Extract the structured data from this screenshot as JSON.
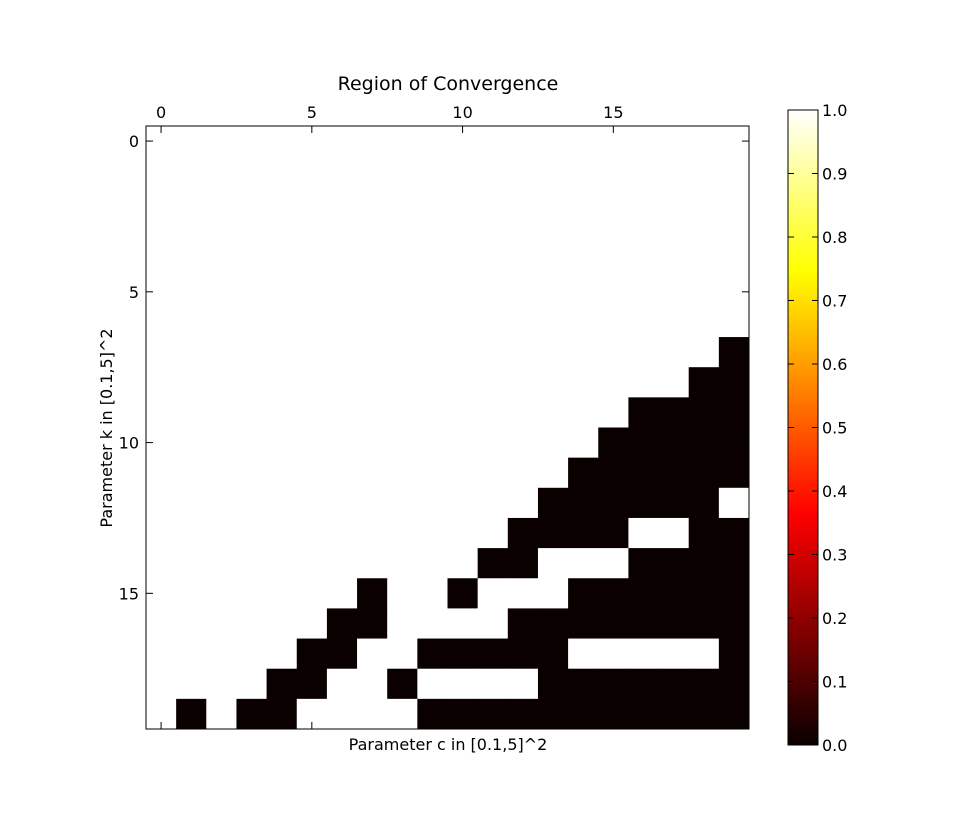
{
  "chart_data": {
    "type": "heatmap",
    "title": "Region of Convergence",
    "xlabel": "Parameter c in [0.1,5]^2",
    "ylabel": "Parameter k in [0.1,5]^2",
    "x_ticks": [
      "0",
      "5",
      "10",
      "15"
    ],
    "y_ticks": [
      "0",
      "5",
      "10",
      "15"
    ],
    "x_range": [
      -0.5,
      19.5
    ],
    "y_range": [
      -0.5,
      19.5
    ],
    "x_tick_position": "top",
    "colormap": "hot",
    "colorbar": {
      "range": [
        0.0,
        1.0
      ],
      "ticks": [
        "0.0",
        "0.1",
        "0.2",
        "0.3",
        "0.4",
        "0.5",
        "0.6",
        "0.7",
        "0.8",
        "0.9",
        "1.0"
      ],
      "stops": [
        "#000000",
        "#ff0000",
        "#ffff00",
        "#ffffff"
      ]
    },
    "low_color": "#0a0000",
    "high_color": "#ffffff",
    "values": [
      [
        1,
        1,
        1,
        1,
        1,
        1,
        1,
        1,
        1,
        1,
        1,
        1,
        1,
        1,
        1,
        1,
        1,
        1,
        1,
        1
      ],
      [
        1,
        1,
        1,
        1,
        1,
        1,
        1,
        1,
        1,
        1,
        1,
        1,
        1,
        1,
        1,
        1,
        1,
        1,
        1,
        1
      ],
      [
        1,
        1,
        1,
        1,
        1,
        1,
        1,
        1,
        1,
        1,
        1,
        1,
        1,
        1,
        1,
        1,
        1,
        1,
        1,
        1
      ],
      [
        1,
        1,
        1,
        1,
        1,
        1,
        1,
        1,
        1,
        1,
        1,
        1,
        1,
        1,
        1,
        1,
        1,
        1,
        1,
        1
      ],
      [
        1,
        1,
        1,
        1,
        1,
        1,
        1,
        1,
        1,
        1,
        1,
        1,
        1,
        1,
        1,
        1,
        1,
        1,
        1,
        1
      ],
      [
        1,
        1,
        1,
        1,
        1,
        1,
        1,
        1,
        1,
        1,
        1,
        1,
        1,
        1,
        1,
        1,
        1,
        1,
        1,
        1
      ],
      [
        1,
        1,
        1,
        1,
        1,
        1,
        1,
        1,
        1,
        1,
        1,
        1,
        1,
        1,
        1,
        1,
        1,
        1,
        1,
        1
      ],
      [
        1,
        1,
        1,
        1,
        1,
        1,
        1,
        1,
        1,
        1,
        1,
        1,
        1,
        1,
        1,
        1,
        1,
        1,
        1,
        0
      ],
      [
        1,
        1,
        1,
        1,
        1,
        1,
        1,
        1,
        1,
        1,
        1,
        1,
        1,
        1,
        1,
        1,
        1,
        1,
        0,
        0
      ],
      [
        1,
        1,
        1,
        1,
        1,
        1,
        1,
        1,
        1,
        1,
        1,
        1,
        1,
        1,
        1,
        1,
        0,
        0,
        0,
        0
      ],
      [
        1,
        1,
        1,
        1,
        1,
        1,
        1,
        1,
        1,
        1,
        1,
        1,
        1,
        1,
        1,
        0,
        0,
        0,
        0,
        0
      ],
      [
        1,
        1,
        1,
        1,
        1,
        1,
        1,
        1,
        1,
        1,
        1,
        1,
        1,
        1,
        0,
        0,
        0,
        0,
        0,
        0
      ],
      [
        1,
        1,
        1,
        1,
        1,
        1,
        1,
        1,
        1,
        1,
        1,
        1,
        1,
        0,
        0,
        0,
        0,
        0,
        0,
        1
      ],
      [
        1,
        1,
        1,
        1,
        1,
        1,
        1,
        1,
        1,
        1,
        1,
        1,
        0,
        0,
        0,
        0,
        1,
        1,
        0,
        0
      ],
      [
        1,
        1,
        1,
        1,
        1,
        1,
        1,
        1,
        1,
        1,
        1,
        0,
        0,
        1,
        1,
        1,
        0,
        0,
        0,
        0
      ],
      [
        1,
        1,
        1,
        1,
        1,
        1,
        1,
        0,
        1,
        1,
        0,
        1,
        1,
        1,
        0,
        0,
        0,
        0,
        0,
        0
      ],
      [
        1,
        1,
        1,
        1,
        1,
        1,
        0,
        0,
        1,
        1,
        1,
        1,
        0,
        0,
        0,
        0,
        0,
        0,
        0,
        0
      ],
      [
        1,
        1,
        1,
        1,
        1,
        0,
        0,
        1,
        1,
        0,
        0,
        0,
        0,
        0,
        1,
        1,
        1,
        1,
        1,
        0
      ],
      [
        1,
        1,
        1,
        1,
        0,
        0,
        1,
        1,
        0,
        1,
        1,
        1,
        1,
        0,
        0,
        0,
        0,
        0,
        0,
        0
      ],
      [
        1,
        0,
        1,
        0,
        0,
        1,
        1,
        1,
        1,
        0,
        0,
        0,
        0,
        0,
        0,
        0,
        0,
        0,
        0,
        0
      ]
    ]
  }
}
